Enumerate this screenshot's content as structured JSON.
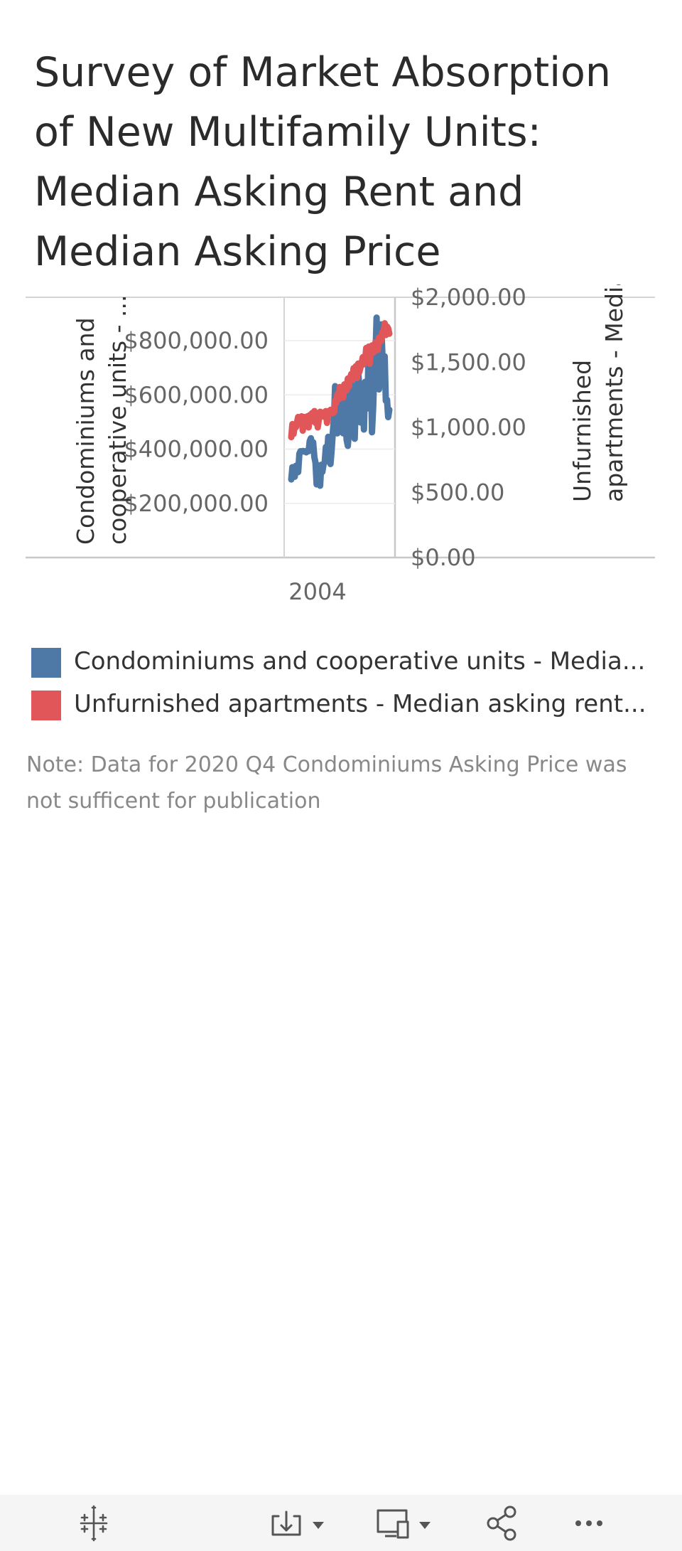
{
  "title": "Survey of Market Absorption of New Multifamily Units: Median Asking Rent and Median Asking Price",
  "legend": [
    {
      "label": "Condominiums and cooperative units - Media...",
      "color": "#4e79a7"
    },
    {
      "label": "Unfurnished apartments - Median asking rent...",
      "color": "#e15759"
    }
  ],
  "note": "Note: Data for 2020 Q4 Condominiums Asking Price was not sufficent for publication",
  "chart_data": {
    "type": "line",
    "x_tick_labels": [
      "2004"
    ],
    "left_axis": {
      "label": "Condominiums and cooperative units - ...",
      "ticks": [
        "$800,000.00",
        "$600,000.00",
        "$400,000.00",
        "$200,000.00"
      ],
      "tick_values": [
        800000,
        600000,
        400000,
        200000
      ],
      "range": [
        0,
        960000
      ]
    },
    "right_axis": {
      "label": "Unfurnished apartments - Media...",
      "ticks": [
        "$2,000.00",
        "$1,500.00",
        "$1,000.00",
        "$500.00",
        "$0.00"
      ],
      "tick_values": [
        2000,
        1500,
        1000,
        500,
        0
      ],
      "range": [
        0,
        2000
      ]
    },
    "grid": true,
    "legend_position": "bottom",
    "series": [
      {
        "name": "Condominiums and cooperative units - Media...",
        "axis": "left",
        "color": "#4e79a7",
        "values": [
          288000,
          333000,
          330000,
          298000,
          338000,
          340000,
          315000,
          383000,
          392000,
          390000,
          393000,
          391000,
          392000,
          388000,
          393000,
          392000,
          430000,
          440000,
          418000,
          425000,
          370000,
          350000,
          270000,
          340000,
          305000,
          265000,
          342000,
          316000,
          345000,
          352000,
          408000,
          368000,
          445000,
          388000,
          345000,
          395000,
          458000,
          512000,
          632000,
          560000,
          458000,
          482000,
          540000,
          610000,
          485000,
          458000,
          638000,
          525000,
          435000,
          412000,
          465000,
          608000,
          648000,
          572000,
          550000,
          438000,
          585000,
          570000,
          685000,
          628000,
          498000,
          555000,
          560000,
          472000,
          648000,
          548000,
          572000,
          750000,
          622000,
          730000,
          462000,
          555000,
          695000,
          742000,
          885000,
          705000,
          620000,
          668000,
          860000,
          748000,
          718000,
          742000,
          578000,
          582000,
          518000,
          545000
        ]
      },
      {
        "name": "Unfurnished apartments - Median asking rent...",
        "axis": "right",
        "color": "#e15759",
        "values": [
          925,
          1025,
          950,
          1015,
          1000,
          1040,
          1080,
          1070,
          1030,
          1085,
          975,
          1080,
          1060,
          1020,
          1085,
          1000,
          1095,
          1045,
          1110,
          1075,
          1125,
          1035,
          1085,
          1000,
          1070,
          1120,
          1085,
          1115,
          1085,
          1080,
          1125,
          1035,
          1100,
          1110,
          1135,
          1120,
          1110,
          1115,
          1205,
          1190,
          1255,
          1215,
          1310,
          1245,
          1300,
          1230,
          1330,
          1325,
          1285,
          1375,
          1315,
          1380,
          1410,
          1365,
          1455,
          1405,
          1470,
          1380,
          1490,
          1425,
          1460,
          1495,
          1540,
          1485,
          1510,
          1610,
          1545,
          1620,
          1490,
          1595,
          1630,
          1575,
          1585,
          1655,
          1615,
          1595,
          1690,
          1680,
          1665,
          1730,
          1715,
          1800,
          1710,
          1775,
          1760,
          1720
        ]
      }
    ]
  },
  "toolbar": {
    "items": [
      "tableau-logo-icon",
      "download-icon",
      "device-layout-icon",
      "share-icon",
      "more-icon"
    ]
  }
}
